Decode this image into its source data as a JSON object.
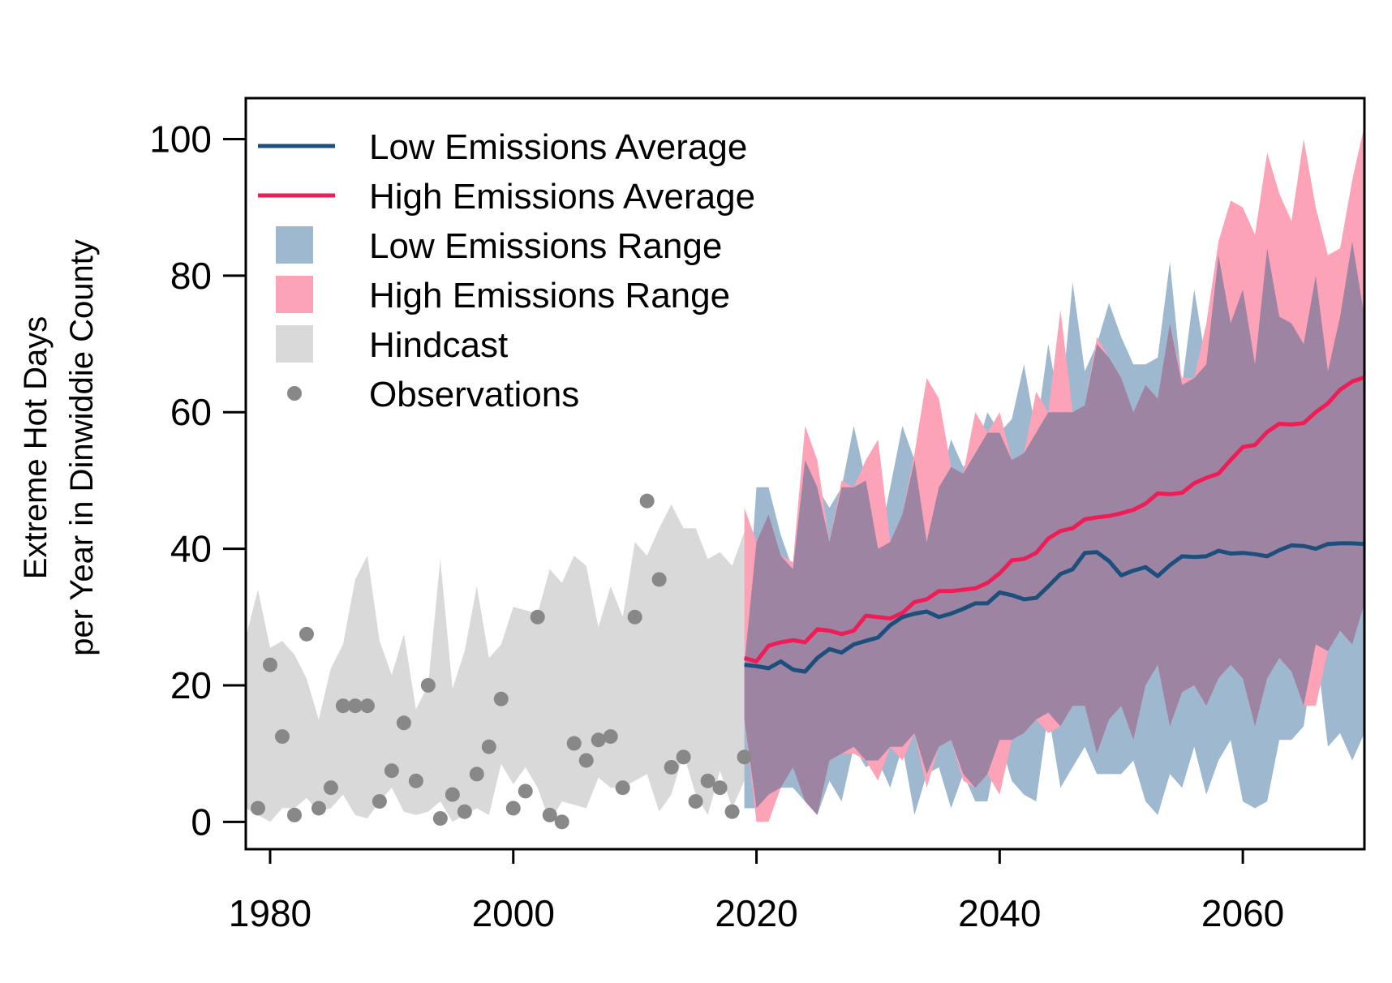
{
  "chart_data": {
    "type": "line",
    "title": "",
    "xlabel": "",
    "ylabel_line1": "Extreme Hot Days",
    "ylabel_line2": "per Year in Dinwiddie County",
    "xlim": [
      1978,
      2070
    ],
    "ylim": [
      -4,
      106
    ],
    "x_ticks": [
      1980,
      2000,
      2020,
      2040,
      2060
    ],
    "y_ticks": [
      0,
      20,
      40,
      60,
      80,
      100
    ],
    "grid": false,
    "legend_position": "top-left",
    "colors": {
      "low_line": "#1d4f7c",
      "high_line": "#ef1d56",
      "low_range": "#9db8cf",
      "high_range": "#fda3b8",
      "overlap": "#9e84a3",
      "hindcast": "#d9d9d9",
      "observations": "#888888"
    },
    "legend": [
      {
        "label": "Low Emissions Average",
        "kind": "line",
        "color": "#1d4f7c"
      },
      {
        "label": "High Emissions Average",
        "kind": "line",
        "color": "#ef1d56"
      },
      {
        "label": "Low Emissions Range",
        "kind": "box",
        "color": "#9db8cf"
      },
      {
        "label": "High Emissions Range",
        "kind": "box",
        "color": "#fda3b8"
      },
      {
        "label": "Hindcast",
        "kind": "box",
        "color": "#d9d9d9"
      },
      {
        "label": "Observations",
        "kind": "point",
        "color": "#888888"
      }
    ],
    "observations": {
      "x": [
        1979,
        1980,
        1981,
        1982,
        1983,
        1984,
        1985,
        1986,
        1987,
        1988,
        1989,
        1990,
        1991,
        1992,
        1993,
        1994,
        1995,
        1996,
        1997,
        1998,
        1999,
        2000,
        2001,
        2002,
        2003,
        2004,
        2005,
        2006,
        2007,
        2008,
        2009,
        2010,
        2011,
        2012,
        2013,
        2014,
        2015,
        2016,
        2017,
        2018,
        2019
      ],
      "y": [
        2,
        23,
        12.5,
        1,
        27.5,
        2,
        5,
        17,
        17,
        17,
        3,
        7.5,
        14.5,
        6,
        20,
        0.5,
        4,
        1.5,
        7,
        11,
        18,
        2,
        4.5,
        30,
        1,
        0,
        11.5,
        9,
        12,
        12.5,
        5,
        30,
        47,
        35.5,
        8,
        9.5,
        3,
        6,
        5,
        1.5,
        9.5
      ]
    },
    "hindcast": {
      "x": [
        1978,
        1979,
        1980,
        1981,
        1982,
        1983,
        1984,
        1985,
        1986,
        1987,
        1988,
        1989,
        1990,
        1991,
        1992,
        1993,
        1994,
        1995,
        1996,
        1997,
        1998,
        1999,
        2000,
        2001,
        2002,
        2003,
        2004,
        2005,
        2006,
        2007,
        2008,
        2009,
        2010,
        2011,
        2012,
        2013,
        2014,
        2015,
        2016,
        2017,
        2018,
        2019
      ],
      "upper": [
        27,
        34,
        25.5,
        26.5,
        24.5,
        21,
        15,
        22.5,
        26,
        35.5,
        39,
        26.5,
        21.5,
        27.5,
        16.5,
        20,
        38.5,
        19.5,
        25,
        34.5,
        24,
        26,
        31.5,
        31,
        30.5,
        37,
        35,
        39,
        37.5,
        28.5,
        34.5,
        30,
        41,
        39,
        43,
        46.5,
        43,
        43,
        38.5,
        39.5,
        37.5,
        42.5
      ],
      "lower": [
        2,
        1,
        0,
        2,
        2,
        3.5,
        1.5,
        2,
        4,
        1,
        0.5,
        3,
        5,
        1.5,
        1,
        1.5,
        3,
        0,
        1,
        2,
        1,
        8.5,
        5.5,
        8,
        5,
        0,
        3,
        2.5,
        2,
        6.5,
        5,
        5,
        6,
        7,
        1.5,
        4,
        10,
        4,
        1,
        7.5,
        2,
        6
      ]
    },
    "x_projection": [
      2019,
      2020,
      2021,
      2022,
      2023,
      2024,
      2025,
      2026,
      2027,
      2028,
      2029,
      2030,
      2031,
      2032,
      2033,
      2034,
      2035,
      2036,
      2037,
      2038,
      2039,
      2040,
      2041,
      2042,
      2043,
      2044,
      2045,
      2046,
      2047,
      2048,
      2049,
      2050,
      2051,
      2052,
      2053,
      2054,
      2055,
      2056,
      2057,
      2058,
      2059,
      2060,
      2061,
      2062,
      2063,
      2064,
      2065,
      2066,
      2067,
      2068,
      2069,
      2070
    ],
    "series": [
      {
        "name": "Low Emissions Average",
        "values": [
          23,
          22.8,
          22.5,
          23.5,
          22.3,
          22,
          24,
          25.3,
          24.8,
          26,
          26.5,
          27,
          28.8,
          30,
          30.5,
          30.8,
          30,
          30.5,
          31.2,
          32,
          32,
          33.6,
          33.2,
          32.6,
          32.8,
          34.5,
          36.3,
          37,
          39.4,
          39.5,
          38.2,
          36.1,
          36.8,
          37.3,
          36,
          37.6,
          38.9,
          38.8,
          38.9,
          39.7,
          39.3,
          39.4,
          39.2,
          38.9,
          39.8,
          40.5,
          40.4,
          40,
          40.7,
          40.8,
          40.8,
          40.7
        ],
        "upper": [
          23,
          49,
          49,
          42,
          37,
          53,
          49,
          46,
          49,
          58,
          50,
          40,
          49,
          58,
          53,
          41,
          49,
          56,
          52,
          54,
          60,
          57,
          59,
          67,
          57,
          70,
          60,
          79,
          66,
          70,
          76,
          71,
          67,
          67,
          68,
          82,
          64,
          78,
          67,
          83,
          73,
          78,
          67,
          84,
          74,
          73,
          70,
          80,
          66,
          74,
          85,
          74
        ],
        "lower": [
          2,
          2,
          4,
          5,
          5,
          3,
          1,
          6,
          3,
          11,
          8,
          9,
          5,
          11,
          1,
          7,
          8,
          2,
          7,
          3,
          3,
          12,
          6,
          4,
          3,
          16,
          5,
          8,
          11,
          7,
          7,
          7,
          9,
          3,
          1,
          7,
          5,
          11,
          4,
          9,
          12,
          3,
          2,
          3,
          12,
          12,
          14,
          26,
          11,
          13,
          9,
          13
        ]
      },
      {
        "name": "High Emissions Average",
        "values": [
          24,
          23.5,
          25.8,
          26.3,
          26.6,
          26.3,
          28.2,
          28,
          27.5,
          28,
          30.2,
          30,
          29.8,
          30.6,
          32.2,
          32.6,
          33.8,
          33.8,
          34,
          34.2,
          35,
          36.4,
          38.3,
          38.5,
          39.4,
          41.5,
          42.6,
          43,
          44.3,
          44.6,
          44.8,
          45.2,
          45.7,
          46.6,
          48.1,
          48,
          48.2,
          49.6,
          50.4,
          51,
          53,
          54.9,
          55.2,
          57.1,
          58.3,
          58.2,
          58.4,
          60,
          61.3,
          63.3,
          64.5,
          65.1
        ],
        "upper": [
          46,
          41,
          45,
          39,
          38,
          58,
          53,
          41,
          50,
          49,
          53,
          56,
          41,
          45,
          54,
          65,
          62,
          52,
          51,
          60,
          57,
          60,
          53,
          54,
          63,
          60,
          75,
          60,
          61,
          71,
          68,
          65,
          60,
          64,
          62,
          73,
          65,
          65,
          73,
          85,
          91,
          90,
          86,
          98,
          92,
          88,
          100,
          90,
          83,
          84,
          94,
          102
        ],
        "lower": [
          15,
          0,
          0,
          5,
          8,
          3,
          1,
          9,
          10,
          10,
          9,
          6,
          11,
          9,
          13,
          5,
          11,
          12,
          6,
          5,
          7,
          4,
          12,
          13,
          15,
          13,
          14,
          17,
          17,
          10,
          15,
          17,
          12,
          20,
          23,
          14,
          19,
          20,
          17,
          21,
          23,
          21,
          14,
          21,
          24,
          22,
          17,
          17,
          25,
          28,
          26,
          32
        ]
      }
    ]
  }
}
